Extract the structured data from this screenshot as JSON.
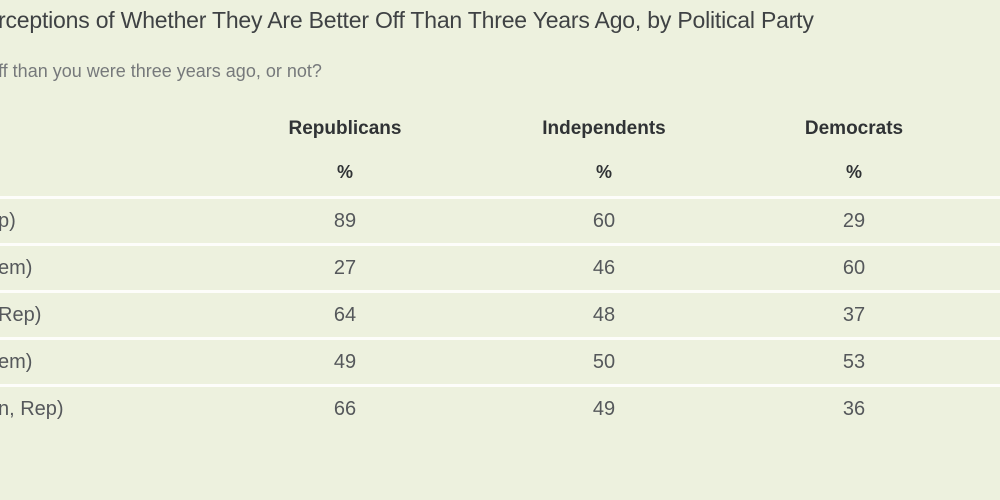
{
  "page": {
    "background_color": "#edf1de",
    "separator_color": "#fdfdfa"
  },
  "header": {
    "title": "rceptions of Whether They Are Better Off Than Three Years Ago, by Political Party",
    "subtitle": "ff than you were three years ago, or not?"
  },
  "table": {
    "column_headers": [
      "Republicans",
      "Independents",
      "Democrats"
    ],
    "unit_symbols": [
      "%",
      "%",
      "%"
    ],
    "rows": [
      {
        "label": "p)",
        "values": [
          "89",
          "60",
          "29"
        ]
      },
      {
        "label": "em)",
        "values": [
          "27",
          "46",
          "60"
        ]
      },
      {
        "label": "Rep)",
        "values": [
          "64",
          "48",
          "37"
        ]
      },
      {
        "label": "em)",
        "values": [
          "49",
          "50",
          "53"
        ]
      },
      {
        "label": "n, Rep)",
        "values": [
          "66",
          "49",
          "36"
        ]
      }
    ]
  },
  "chart_data": {
    "type": "table",
    "title": "rceptions of Whether They Are Better Off Than Three Years Ago, by Political Party",
    "subtitle": "ff than you were three years ago, or not?",
    "categories": [
      "p)",
      "em)",
      "Rep)",
      "em)",
      "n, Rep)"
    ],
    "series": [
      {
        "name": "Republicans",
        "values": [
          89,
          27,
          64,
          49,
          66
        ]
      },
      {
        "name": "Independents",
        "values": [
          60,
          46,
          48,
          50,
          49
        ]
      },
      {
        "name": "Democrats",
        "values": [
          29,
          60,
          37,
          53,
          36
        ]
      }
    ],
    "unit": "%"
  }
}
